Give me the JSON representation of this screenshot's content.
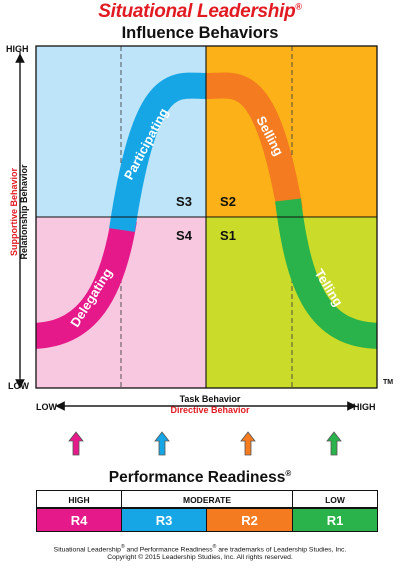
{
  "header": {
    "title": "Situational Leadership",
    "reg": "®",
    "subtitle": "Influence Behaviors"
  },
  "y_axis": {
    "high": "HIGH",
    "low": "LOW",
    "label_red": "Supportive Behavior",
    "label_black": "Relationship Behavior"
  },
  "x_axis": {
    "low": "LOW",
    "high": "HIGH",
    "label_black": "Task Behavior",
    "label_red": "Directive Behavior"
  },
  "trademark": "TM",
  "quadrants": [
    {
      "code": "S3",
      "color": "#bde4f8"
    },
    {
      "code": "S2",
      "color": "#fbb117"
    },
    {
      "code": "S4",
      "color": "#f7c8e0"
    },
    {
      "code": "S1",
      "color": "#cbdb2a"
    }
  ],
  "curve": {
    "colors": {
      "delegating": "#e6198a",
      "participating": "#16a6e6",
      "selling": "#f47b20",
      "telling": "#2ab34a"
    },
    "labels": {
      "delegating": "Delegating",
      "participating": "Participating",
      "selling": "Selling",
      "telling": "Telling"
    }
  },
  "performance": {
    "title": "Performance Readiness",
    "reg": "®",
    "levels": [
      "HIGH",
      "MODERATE",
      "LOW"
    ],
    "readiness": [
      {
        "code": "R4",
        "color": "#e6198a"
      },
      {
        "code": "R3",
        "color": "#16a6e6"
      },
      {
        "code": "R2",
        "color": "#f47b20"
      },
      {
        "code": "R1",
        "color": "#2ab34a"
      }
    ]
  },
  "footer": {
    "line1_a": "Situational Leadership",
    "line1_b": " and Performance Readiness",
    "line1_c": " are trademarks of Leadership Studies, Inc.",
    "reg": "®",
    "line2": "Copyright © 2015 Leadership Studies, Inc. All rights reserved."
  }
}
